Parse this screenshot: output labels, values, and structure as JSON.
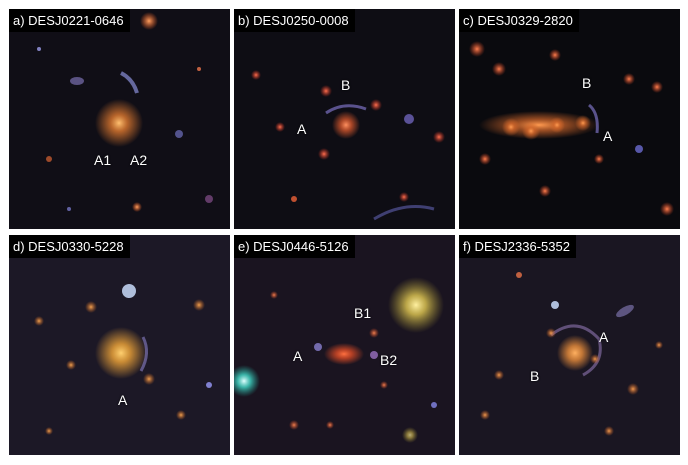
{
  "panels": [
    {
      "title": "a) DESJ0221-0646",
      "labels": [
        "A1",
        "A2"
      ],
      "bg": "#100e16",
      "center": {
        "color": "#e07a30"
      }
    },
    {
      "title": "b) DESJ0250-0008",
      "labels": [
        "B",
        "A"
      ],
      "bg": "#0e0d14",
      "center": {
        "color": "#d0552c"
      }
    },
    {
      "title": "c) DESJ0329-2820",
      "labels": [
        "B",
        "A"
      ],
      "bg": "#0a0a0e",
      "center": {
        "color": "#d86a2c"
      }
    },
    {
      "title": "d) DESJ0330-5228",
      "labels": [
        "A"
      ],
      "bg": "#1c1826",
      "center": {
        "color": "#e8a038"
      }
    },
    {
      "title": "e) DESJ0446-5126",
      "labels": [
        "B1",
        "A",
        "B2"
      ],
      "bg": "#1a1420",
      "center": {
        "color": "#d84a26"
      }
    },
    {
      "title": "f) DESJ2336-5352",
      "labels": [
        "A",
        "B"
      ],
      "bg": "#1a1622",
      "center": {
        "color": "#e0883a"
      }
    }
  ]
}
